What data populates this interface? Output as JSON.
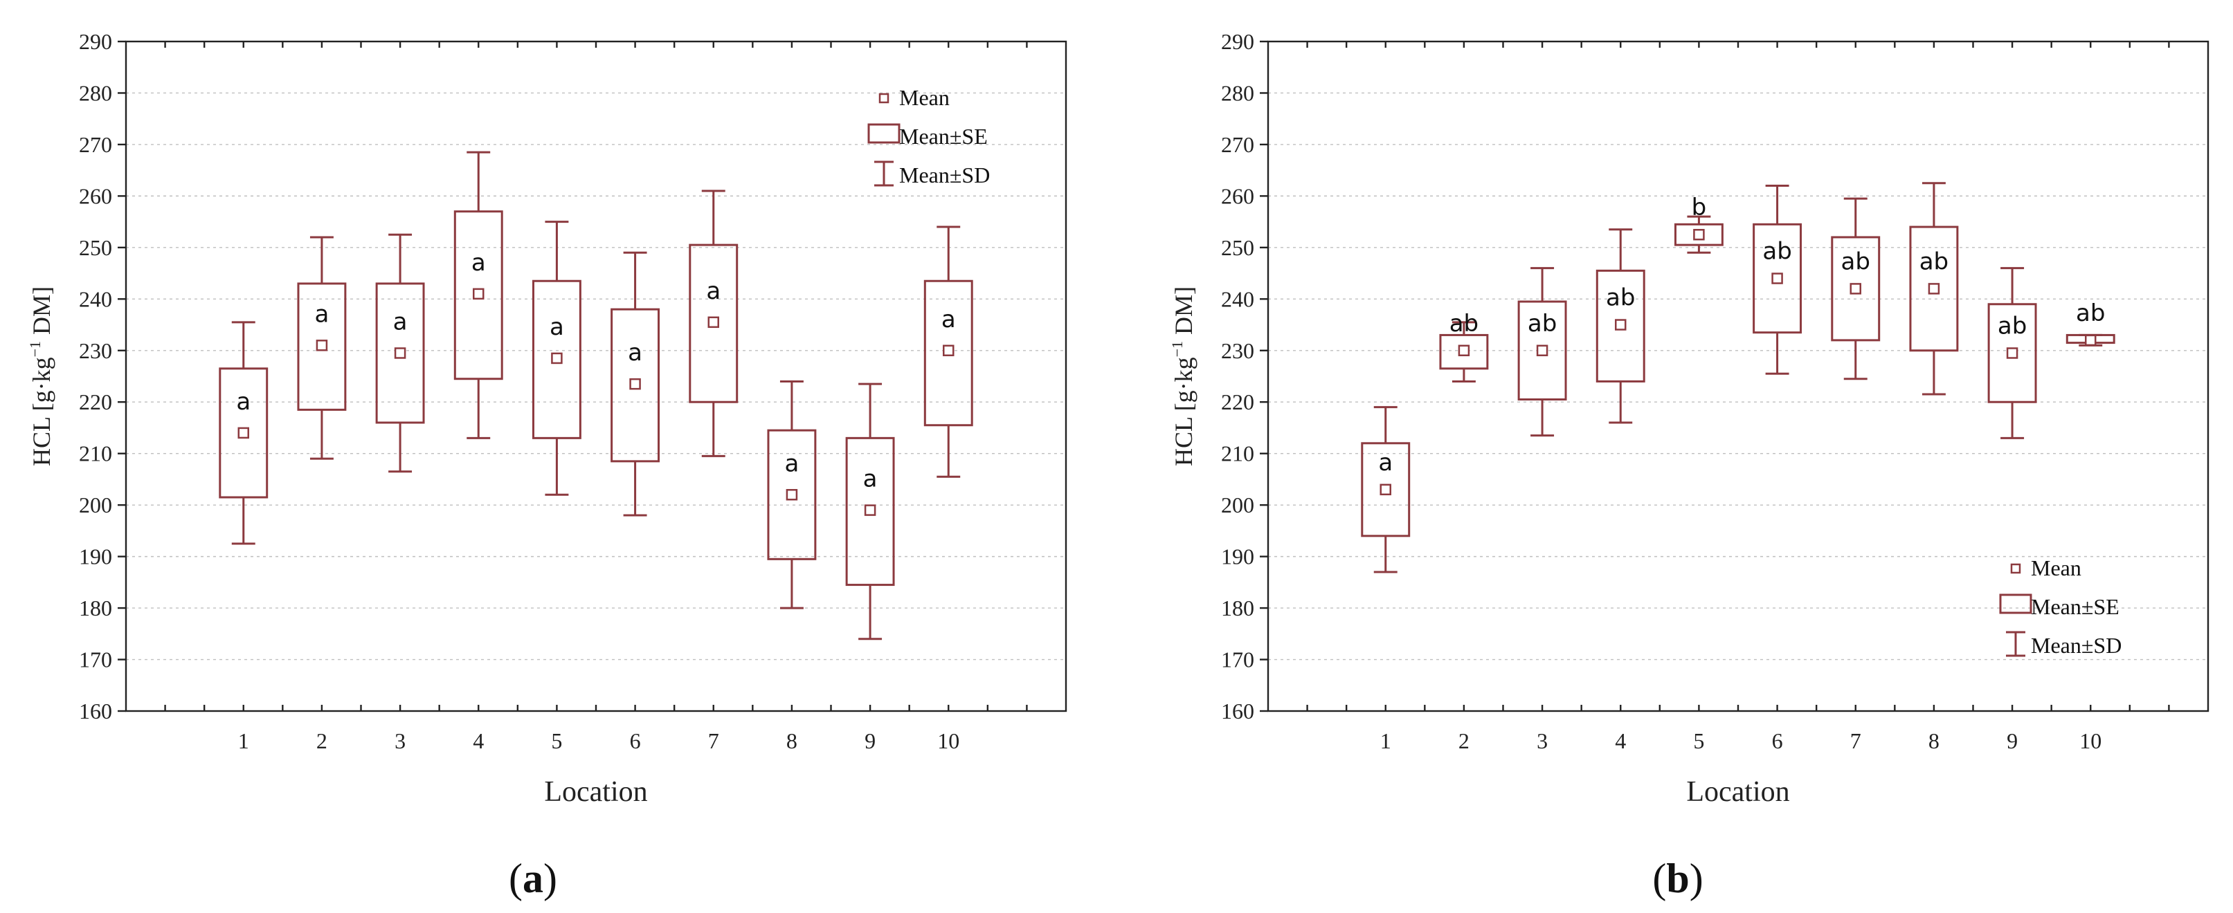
{
  "chart_data": [
    {
      "type": "box",
      "panel_label": "a",
      "xlabel": "Location",
      "ylabel": "HCL [g·kg",
      "ylabel_sup": "−1",
      "ylabel_rest": " DM]",
      "ylim": [
        160,
        290
      ],
      "y_ticks": [
        160,
        170,
        180,
        190,
        200,
        210,
        220,
        230,
        240,
        250,
        260,
        270,
        280,
        290
      ],
      "categories": [
        "1",
        "2",
        "3",
        "4",
        "5",
        "6",
        "7",
        "8",
        "9",
        "10"
      ],
      "mean": [
        214,
        231,
        229.5,
        241,
        228.5,
        223.5,
        235.5,
        202,
        199,
        230
      ],
      "se_low": [
        201.5,
        218.5,
        216,
        224.5,
        213,
        208.5,
        220,
        189.5,
        184.5,
        215.5
      ],
      "se_high": [
        226.5,
        243,
        243,
        257,
        243.5,
        238,
        250.5,
        214.5,
        213,
        243.5
      ],
      "sd_low": [
        192.5,
        209,
        206.5,
        213,
        202,
        198,
        209.5,
        180,
        174,
        205.5
      ],
      "sd_high": [
        235.5,
        252,
        252.5,
        268.5,
        255,
        249,
        261,
        224,
        223.5,
        254
      ],
      "letters": [
        "a",
        "a",
        "a",
        "a",
        "a",
        "a",
        "a",
        "a",
        "a",
        "a"
      ],
      "legend": {
        "position": "top-right",
        "items": [
          "Mean",
          "Mean±SE",
          "Mean±SD"
        ]
      },
      "grid": true
    },
    {
      "type": "box",
      "panel_label": "b",
      "xlabel": "Location",
      "ylabel": "HCL [g·kg",
      "ylabel_sup": "−1",
      "ylabel_rest": " DM]",
      "ylim": [
        160,
        290
      ],
      "y_ticks": [
        160,
        170,
        180,
        190,
        200,
        210,
        220,
        230,
        240,
        250,
        260,
        270,
        280,
        290
      ],
      "categories": [
        "1",
        "2",
        "3",
        "4",
        "5",
        "6",
        "7",
        "8",
        "9",
        "10"
      ],
      "mean": [
        203,
        230,
        230,
        235,
        252.5,
        244,
        242,
        242,
        229.5,
        232
      ],
      "se_low": [
        194,
        226.5,
        220.5,
        224,
        250.5,
        233.5,
        232,
        230,
        220,
        231.5
      ],
      "se_high": [
        212,
        233,
        239.5,
        245.5,
        254.5,
        254.5,
        252,
        254,
        239,
        233
      ],
      "sd_low": [
        187,
        224,
        213.5,
        216,
        249,
        225.5,
        224.5,
        221.5,
        213,
        231
      ],
      "sd_high": [
        219,
        235.5,
        246,
        253.5,
        256,
        262,
        259.5,
        262.5,
        246,
        233
      ],
      "letters": [
        "a",
        "ab",
        "ab",
        "ab",
        "b",
        "ab",
        "ab",
        "ab",
        "ab",
        "ab"
      ],
      "legend": {
        "position": "bottom-right",
        "items": [
          "Mean",
          "Mean±SE",
          "Mean±SD"
        ]
      },
      "grid": true
    }
  ]
}
